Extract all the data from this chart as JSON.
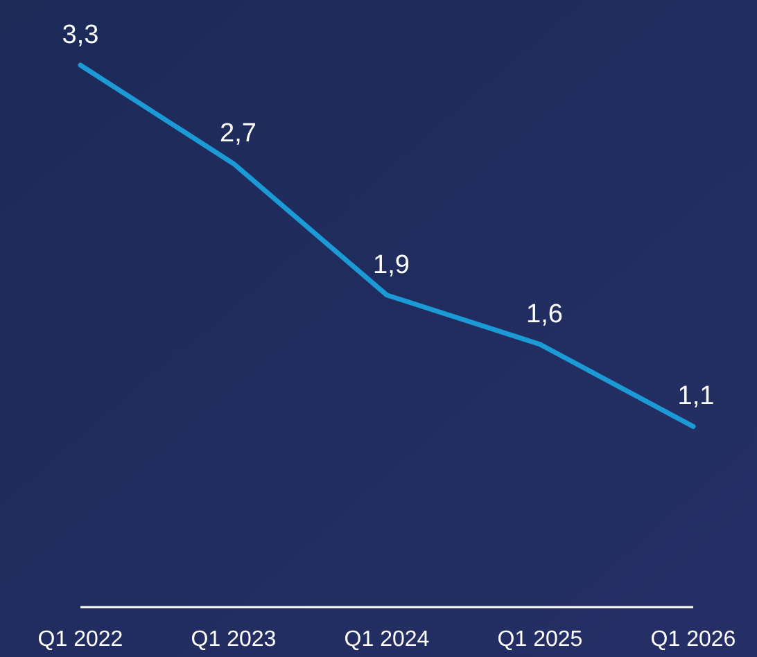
{
  "chart_data": {
    "type": "line",
    "categories": [
      "Q1 2022",
      "Q1 2023",
      "Q1 2024",
      "Q1 2025",
      "Q1 2026"
    ],
    "series": [
      {
        "color": "#1b9ad6",
        "values": [
          3.3,
          2.7,
          1.9,
          1.6,
          1.1
        ],
        "value_labels": [
          "3,3",
          "2,7",
          "1,9",
          "1,6",
          "1,1"
        ]
      }
    ],
    "tick_labels": "x",
    "line_style": "solid"
  }
}
